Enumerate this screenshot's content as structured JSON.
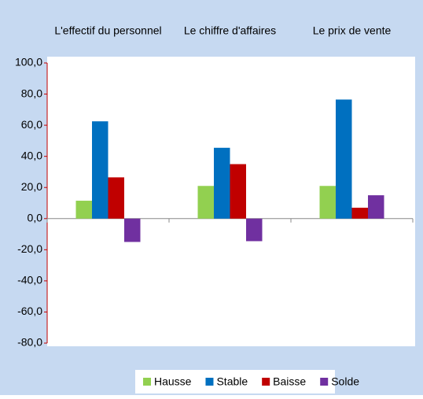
{
  "chart_data": {
    "type": "bar",
    "categories": [
      "L'effectif du personnel",
      "Le chiffre d'affaires",
      "Le prix de vente"
    ],
    "series": [
      {
        "name": "Hausse",
        "color": "#92d050",
        "values": [
          11.5,
          21,
          21
        ]
      },
      {
        "name": "Stable",
        "color": "#0070c0",
        "values": [
          62.5,
          45.5,
          76.5
        ]
      },
      {
        "name": "Baisse",
        "color": "#c00000",
        "values": [
          26.5,
          35,
          7
        ]
      },
      {
        "name": "Solde",
        "color": "#7030a0",
        "values": [
          -15,
          -14.5,
          15
        ]
      }
    ],
    "ylim": [
      -80,
      100
    ],
    "yticks": [
      {
        "value": -80,
        "label": "-80,0"
      },
      {
        "value": -60,
        "label": "-60,0"
      },
      {
        "value": -40,
        "label": "-40,0"
      },
      {
        "value": -20,
        "label": "-20,0"
      },
      {
        "value": 0,
        "label": "0,0"
      },
      {
        "value": 20,
        "label": "20,0"
      },
      {
        "value": 40,
        "label": "40,0"
      },
      {
        "value": 60,
        "label": "60,0"
      },
      {
        "value": 80,
        "label": "80,0"
      },
      {
        "value": 100,
        "label": "100,0"
      }
    ],
    "legend": "bottom"
  }
}
